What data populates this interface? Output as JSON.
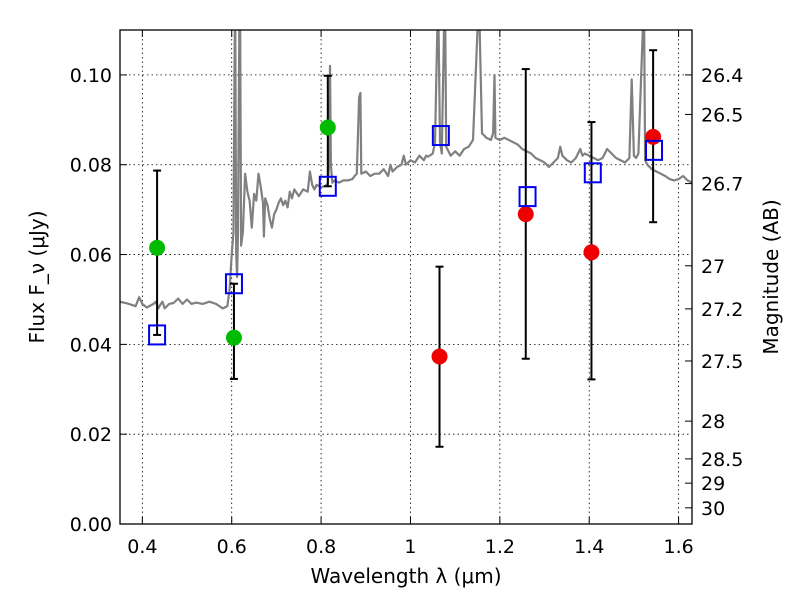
{
  "chart_data": {
    "type": "scatter",
    "xlabel": "Wavelength λ (μm)",
    "ylabel": "Flux F_ν (μJy)",
    "y2label": "Magnitude (AB)",
    "xlim": [
      0.35,
      1.63
    ],
    "ylim": [
      0.0,
      0.11
    ],
    "grid": true,
    "x_ticks": [
      0.4,
      0.6,
      0.8,
      1.0,
      1.2,
      1.4,
      1.6
    ],
    "x_tick_labels": [
      "0.4",
      "0.6",
      "0.8",
      "1",
      "1.2",
      "1.4",
      "1.6"
    ],
    "y_ticks": [
      0.0,
      0.02,
      0.04,
      0.06,
      0.08,
      0.1
    ],
    "y_tick_labels": [
      "0.00",
      "0.02",
      "0.04",
      "0.06",
      "0.08",
      "0.10"
    ],
    "mag_ticks": [
      {
        "label": "26.4",
        "flux": 0.1
      },
      {
        "label": "26.5",
        "flux": 0.0912
      },
      {
        "label": "26.7",
        "flux": 0.0758
      },
      {
        "label": "27",
        "flux": 0.0575
      },
      {
        "label": "27.2",
        "flux": 0.0479
      },
      {
        "label": "27.5",
        "flux": 0.0363
      },
      {
        "label": "28",
        "flux": 0.0229
      },
      {
        "label": "28.5",
        "flux": 0.0145
      },
      {
        "label": "29",
        "flux": 0.0091
      },
      {
        "label": "30",
        "flux": 0.0036
      }
    ],
    "series": [
      {
        "name": "model spectrum",
        "kind": "line",
        "color": "#808080",
        "points": [
          [
            0.35,
            0.0495
          ],
          [
            0.37,
            0.049
          ],
          [
            0.385,
            0.0485
          ],
          [
            0.393,
            0.0505
          ],
          [
            0.4,
            0.049
          ],
          [
            0.41,
            0.0482
          ],
          [
            0.425,
            0.049
          ],
          [
            0.43,
            0.0495
          ],
          [
            0.436,
            0.048
          ],
          [
            0.44,
            0.0488
          ],
          [
            0.445,
            0.0495
          ],
          [
            0.45,
            0.048
          ],
          [
            0.46,
            0.049
          ],
          [
            0.47,
            0.0492
          ],
          [
            0.48,
            0.0502
          ],
          [
            0.49,
            0.049
          ],
          [
            0.5,
            0.05
          ],
          [
            0.51,
            0.049
          ],
          [
            0.52,
            0.0493
          ],
          [
            0.535,
            0.049
          ],
          [
            0.55,
            0.0495
          ],
          [
            0.565,
            0.049
          ],
          [
            0.58,
            0.048
          ],
          [
            0.59,
            0.0485
          ],
          [
            0.595,
            0.052
          ],
          [
            0.6,
            0.06
          ],
          [
            0.604,
            0.065
          ],
          [
            0.606,
            0.098
          ],
          [
            0.607,
            0.11
          ],
          [
            0.608,
            0.11
          ],
          [
            0.61,
            0.06
          ],
          [
            0.612,
            0.055
          ],
          [
            0.614,
            0.065
          ],
          [
            0.617,
            0.11
          ],
          [
            0.619,
            0.11
          ],
          [
            0.621,
            0.062
          ],
          [
            0.625,
            0.065
          ],
          [
            0.63,
            0.078
          ],
          [
            0.635,
            0.074
          ],
          [
            0.64,
            0.072
          ],
          [
            0.645,
            0.066
          ],
          [
            0.65,
            0.0735
          ],
          [
            0.655,
            0.072
          ],
          [
            0.66,
            0.078
          ],
          [
            0.665,
            0.075
          ],
          [
            0.67,
            0.0715
          ],
          [
            0.672,
            0.064
          ],
          [
            0.675,
            0.0725
          ],
          [
            0.68,
            0.071
          ],
          [
            0.685,
            0.068
          ],
          [
            0.69,
            0.066
          ],
          [
            0.695,
            0.069
          ],
          [
            0.7,
            0.07
          ],
          [
            0.705,
            0.0715
          ],
          [
            0.71,
            0.0725
          ],
          [
            0.715,
            0.071
          ],
          [
            0.72,
            0.072
          ],
          [
            0.725,
            0.0705
          ],
          [
            0.73,
            0.074
          ],
          [
            0.735,
            0.0725
          ],
          [
            0.74,
            0.0745
          ],
          [
            0.75,
            0.073
          ],
          [
            0.76,
            0.0745
          ],
          [
            0.77,
            0.074
          ],
          [
            0.775,
            0.0785
          ],
          [
            0.78,
            0.0755
          ],
          [
            0.785,
            0.0745
          ],
          [
            0.79,
            0.0755
          ],
          [
            0.8,
            0.075
          ],
          [
            0.81,
            0.0753
          ],
          [
            0.815,
            0.0758
          ],
          [
            0.818,
            0.08
          ],
          [
            0.82,
            0.102
          ],
          [
            0.822,
            0.08
          ],
          [
            0.825,
            0.076
          ],
          [
            0.83,
            0.0765
          ],
          [
            0.84,
            0.076
          ],
          [
            0.85,
            0.0765
          ],
          [
            0.86,
            0.0765
          ],
          [
            0.87,
            0.0768
          ],
          [
            0.875,
            0.0775
          ],
          [
            0.88,
            0.078
          ],
          [
            0.885,
            0.095
          ],
          [
            0.888,
            0.096
          ],
          [
            0.89,
            0.078
          ],
          [
            0.9,
            0.0785
          ],
          [
            0.91,
            0.0775
          ],
          [
            0.92,
            0.078
          ],
          [
            0.93,
            0.078
          ],
          [
            0.94,
            0.079
          ],
          [
            0.95,
            0.0775
          ],
          [
            0.955,
            0.08
          ],
          [
            0.96,
            0.0785
          ],
          [
            0.97,
            0.0795
          ],
          [
            0.98,
            0.08
          ],
          [
            0.985,
            0.082
          ],
          [
            0.99,
            0.08
          ],
          [
            1.0,
            0.081
          ],
          [
            1.01,
            0.0805
          ],
          [
            1.02,
            0.082
          ],
          [
            1.03,
            0.081
          ],
          [
            1.035,
            0.082
          ],
          [
            1.04,
            0.0818
          ],
          [
            1.05,
            0.0825
          ],
          [
            1.055,
            0.085
          ],
          [
            1.06,
            0.11
          ],
          [
            1.063,
            0.11
          ],
          [
            1.066,
            0.085
          ],
          [
            1.07,
            0.0825
          ],
          [
            1.075,
            0.11
          ],
          [
            1.078,
            0.11
          ],
          [
            1.08,
            0.084
          ],
          [
            1.085,
            0.083
          ],
          [
            1.09,
            0.082
          ],
          [
            1.1,
            0.083
          ],
          [
            1.11,
            0.082
          ],
          [
            1.12,
            0.0835
          ],
          [
            1.13,
            0.084
          ],
          [
            1.14,
            0.0855
          ],
          [
            1.15,
            0.11
          ],
          [
            1.155,
            0.11
          ],
          [
            1.16,
            0.087
          ],
          [
            1.165,
            0.0865
          ],
          [
            1.17,
            0.086
          ],
          [
            1.18,
            0.0855
          ],
          [
            1.185,
            0.087
          ],
          [
            1.188,
            0.1
          ],
          [
            1.19,
            0.086
          ],
          [
            1.2,
            0.0855
          ],
          [
            1.21,
            0.086
          ],
          [
            1.22,
            0.0855
          ],
          [
            1.23,
            0.085
          ],
          [
            1.24,
            0.0845
          ],
          [
            1.25,
            0.0835
          ],
          [
            1.26,
            0.083
          ],
          [
            1.27,
            0.0825
          ],
          [
            1.28,
            0.0815
          ],
          [
            1.29,
            0.081
          ],
          [
            1.3,
            0.0805
          ],
          [
            1.31,
            0.0795
          ],
          [
            1.32,
            0.0805
          ],
          [
            1.33,
            0.0815
          ],
          [
            1.335,
            0.084
          ],
          [
            1.34,
            0.082
          ],
          [
            1.35,
            0.081
          ],
          [
            1.36,
            0.0805
          ],
          [
            1.37,
            0.0815
          ],
          [
            1.38,
            0.0835
          ],
          [
            1.385,
            0.082
          ],
          [
            1.39,
            0.0825
          ],
          [
            1.4,
            0.082
          ],
          [
            1.41,
            0.0815
          ],
          [
            1.42,
            0.081
          ],
          [
            1.43,
            0.0815
          ],
          [
            1.44,
            0.0835
          ],
          [
            1.45,
            0.0825
          ],
          [
            1.46,
            0.0815
          ],
          [
            1.47,
            0.081
          ],
          [
            1.48,
            0.0805
          ],
          [
            1.49,
            0.0815
          ],
          [
            1.495,
            0.099
          ],
          [
            1.5,
            0.082
          ],
          [
            1.505,
            0.0815
          ],
          [
            1.51,
            0.0825
          ],
          [
            1.52,
            0.11
          ],
          [
            1.523,
            0.11
          ],
          [
            1.525,
            0.081
          ],
          [
            1.53,
            0.08
          ],
          [
            1.54,
            0.079
          ],
          [
            1.55,
            0.0785
          ],
          [
            1.56,
            0.078
          ],
          [
            1.57,
            0.0775
          ],
          [
            1.58,
            0.0768
          ],
          [
            1.59,
            0.0765
          ],
          [
            1.6,
            0.0768
          ],
          [
            1.61,
            0.0775
          ],
          [
            1.62,
            0.0765
          ],
          [
            1.63,
            0.076
          ]
        ]
      },
      {
        "name": "green detections",
        "kind": "scatter",
        "marker": "circle",
        "color": "#00bb00",
        "points": [
          [
            0.433,
            0.0615
          ],
          [
            0.605,
            0.0415
          ],
          [
            0.815,
            0.0883
          ]
        ]
      },
      {
        "name": "red detections",
        "kind": "scatter",
        "marker": "circle",
        "color": "#ee0000",
        "points": [
          [
            1.065,
            0.0373
          ],
          [
            1.258,
            0.069
          ],
          [
            1.405,
            0.0605
          ],
          [
            1.543,
            0.0862
          ]
        ]
      },
      {
        "name": "model photometry",
        "kind": "scatter",
        "marker": "open-square",
        "color": "#0000ee",
        "points": [
          [
            0.433,
            0.0421
          ],
          [
            0.605,
            0.0535
          ],
          [
            0.815,
            0.0752
          ],
          [
            1.068,
            0.0865
          ],
          [
            1.262,
            0.0729
          ],
          [
            1.408,
            0.0782
          ],
          [
            1.545,
            0.0832
          ]
        ]
      }
    ],
    "error_bars": [
      {
        "x": 0.433,
        "low": 0.0421,
        "high": 0.0787
      },
      {
        "x": 0.605,
        "low": 0.0323,
        "high": 0.0535
      },
      {
        "x": 0.815,
        "low": 0.0752,
        "high": 0.0998
      },
      {
        "x": 1.065,
        "low": 0.0172,
        "high": 0.0573
      },
      {
        "x": 1.258,
        "low": 0.0368,
        "high": 0.1013
      },
      {
        "x": 1.405,
        "low": 0.0322,
        "high": 0.0895
      },
      {
        "x": 1.543,
        "low": 0.0672,
        "high": 0.1055
      }
    ]
  }
}
